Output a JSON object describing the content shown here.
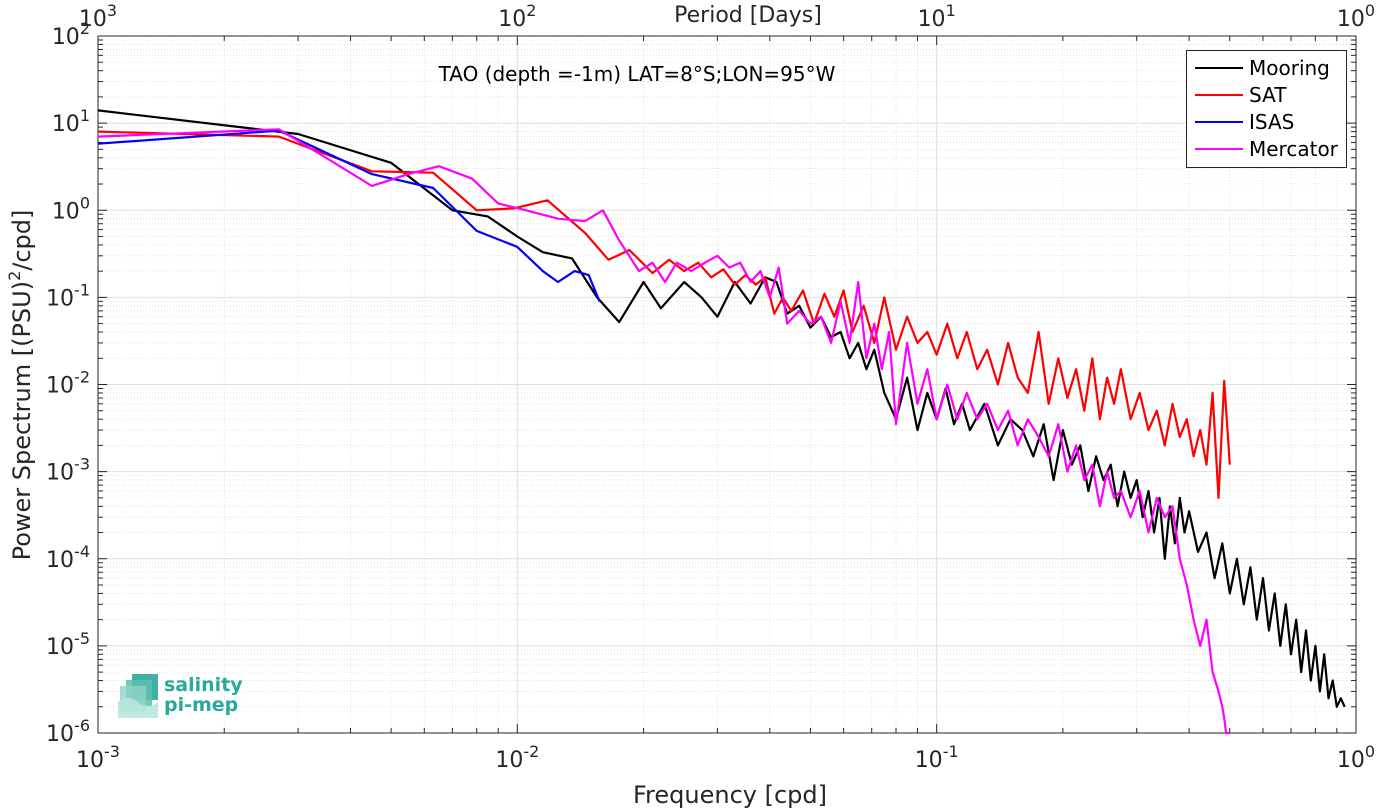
{
  "chart_data": {
    "type": "line",
    "title": "TAO (depth =-1m) LAT=8°S;LON=95°W",
    "xlabel": "Frequency [cpd]",
    "ylabel_parts": [
      "Power Spectrum [(PSU)",
      "2",
      "/cpd]"
    ],
    "top_label": "Period [Days]",
    "x_scale": "log",
    "y_scale": "log",
    "xlim": [
      0.001,
      1
    ],
    "ylim": [
      1e-06,
      100
    ],
    "grid": true,
    "minor_grid": true,
    "legend_location": "top-right",
    "x_ticks": [
      {
        "base": "10",
        "exp": "-3"
      },
      {
        "base": "10",
        "exp": "-2"
      },
      {
        "base": "10",
        "exp": "-1"
      },
      {
        "base": "10",
        "exp": "0"
      }
    ],
    "y_ticks": [
      {
        "base": "10",
        "exp": "-6"
      },
      {
        "base": "10",
        "exp": "-5"
      },
      {
        "base": "10",
        "exp": "-4"
      },
      {
        "base": "10",
        "exp": "-3"
      },
      {
        "base": "10",
        "exp": "-2"
      },
      {
        "base": "10",
        "exp": "-1"
      },
      {
        "base": "10",
        "exp": "0"
      },
      {
        "base": "10",
        "exp": "1"
      },
      {
        "base": "10",
        "exp": "2"
      }
    ],
    "top_ticks": [
      {
        "base": "10",
        "exp": "3"
      },
      {
        "base": "10",
        "exp": "2"
      },
      {
        "base": "10",
        "exp": "1"
      },
      {
        "base": "10",
        "exp": "0"
      }
    ],
    "series": [
      {
        "name": "Mooring",
        "color": "#000000",
        "x": [
          0.001,
          0.003,
          0.005,
          0.007,
          0.0085,
          0.01,
          0.0115,
          0.0135,
          0.0155,
          0.0175,
          0.02,
          0.022,
          0.025,
          0.0275,
          0.03,
          0.033,
          0.036,
          0.039,
          0.0415,
          0.044,
          0.047,
          0.05,
          0.053,
          0.056,
          0.059,
          0.062,
          0.065,
          0.068,
          0.071,
          0.075,
          0.08,
          0.085,
          0.09,
          0.095,
          0.1,
          0.105,
          0.11,
          0.115,
          0.12,
          0.13,
          0.14,
          0.15,
          0.16,
          0.17,
          0.18,
          0.19,
          0.2,
          0.21,
          0.22,
          0.23,
          0.24,
          0.25,
          0.26,
          0.27,
          0.28,
          0.29,
          0.3,
          0.31,
          0.32,
          0.33,
          0.34,
          0.35,
          0.36,
          0.37,
          0.38,
          0.39,
          0.4,
          0.42,
          0.44,
          0.46,
          0.48,
          0.5,
          0.52,
          0.54,
          0.56,
          0.58,
          0.6,
          0.62,
          0.64,
          0.66,
          0.68,
          0.7,
          0.72,
          0.74,
          0.76,
          0.78,
          0.8,
          0.82,
          0.84,
          0.86,
          0.88,
          0.9,
          0.92,
          0.94
        ],
        "y": [
          14,
          7.5,
          3.5,
          1.0,
          0.85,
          0.5,
          0.33,
          0.28,
          0.1,
          0.052,
          0.15,
          0.075,
          0.15,
          0.1,
          0.06,
          0.15,
          0.085,
          0.17,
          0.15,
          0.065,
          0.08,
          0.045,
          0.06,
          0.035,
          0.04,
          0.02,
          0.03,
          0.015,
          0.025,
          0.008,
          0.004,
          0.012,
          0.003,
          0.008,
          0.004,
          0.009,
          0.0035,
          0.006,
          0.003,
          0.006,
          0.002,
          0.004,
          0.003,
          0.0015,
          0.0035,
          0.0008,
          0.003,
          0.0012,
          0.002,
          0.0006,
          0.0015,
          0.0008,
          0.0012,
          0.0004,
          0.001,
          0.0005,
          0.0008,
          0.0003,
          0.0006,
          0.0002,
          0.0005,
          0.0001,
          0.0004,
          0.00015,
          0.0005,
          0.0002,
          0.00035,
          0.00012,
          0.0002,
          6e-05,
          0.00015,
          4e-05,
          0.0001,
          3e-05,
          8e-05,
          2e-05,
          6e-05,
          1.5e-05,
          4e-05,
          1e-05,
          3e-05,
          8e-06,
          2e-05,
          5e-06,
          1.5e-05,
          4e-06,
          1e-05,
          3e-06,
          8e-06,
          2.5e-06,
          4e-06,
          2e-06,
          2.5e-06,
          2e-06
        ]
      },
      {
        "name": "SAT",
        "color": "#ff0000",
        "x": [
          0.001,
          0.0027,
          0.0045,
          0.0063,
          0.008,
          0.0098,
          0.0118,
          0.0145,
          0.0165,
          0.0185,
          0.021,
          0.023,
          0.025,
          0.027,
          0.029,
          0.031,
          0.033,
          0.035,
          0.037,
          0.039,
          0.041,
          0.043,
          0.045,
          0.048,
          0.051,
          0.054,
          0.057,
          0.06,
          0.063,
          0.067,
          0.071,
          0.075,
          0.08,
          0.085,
          0.09,
          0.095,
          0.1,
          0.106,
          0.112,
          0.118,
          0.125,
          0.132,
          0.14,
          0.148,
          0.156,
          0.165,
          0.175,
          0.185,
          0.195,
          0.205,
          0.215,
          0.225,
          0.235,
          0.245,
          0.255,
          0.265,
          0.275,
          0.29,
          0.305,
          0.32,
          0.335,
          0.35,
          0.365,
          0.38,
          0.395,
          0.41,
          0.425,
          0.44,
          0.455,
          0.47,
          0.485,
          0.5
        ],
        "y": [
          8,
          7,
          2.8,
          2.7,
          1.0,
          1.05,
          1.3,
          0.55,
          0.27,
          0.35,
          0.19,
          0.27,
          0.2,
          0.25,
          0.17,
          0.21,
          0.14,
          0.18,
          0.14,
          0.17,
          0.065,
          0.1,
          0.07,
          0.12,
          0.05,
          0.11,
          0.06,
          0.12,
          0.04,
          0.08,
          0.03,
          0.1,
          0.025,
          0.06,
          0.03,
          0.04,
          0.022,
          0.05,
          0.02,
          0.04,
          0.015,
          0.025,
          0.01,
          0.03,
          0.012,
          0.008,
          0.04,
          0.006,
          0.02,
          0.007,
          0.015,
          0.005,
          0.02,
          0.004,
          0.012,
          0.006,
          0.015,
          0.004,
          0.008,
          0.003,
          0.005,
          0.002,
          0.006,
          0.0025,
          0.004,
          0.0015,
          0.003,
          0.0012,
          0.008,
          0.0005,
          0.011,
          0.0012
        ]
      },
      {
        "name": "ISAS",
        "color": "#0000ff",
        "x": [
          0.001,
          0.0027,
          0.0045,
          0.0063,
          0.008,
          0.01,
          0.0115,
          0.0125,
          0.0137,
          0.0148,
          0.0157
        ],
        "y": [
          5.8,
          8.2,
          2.6,
          1.8,
          0.58,
          0.38,
          0.2,
          0.15,
          0.2,
          0.18,
          0.09
        ]
      },
      {
        "name": "Mercator",
        "color": "#ff00ff",
        "x": [
          0.001,
          0.0027,
          0.0035,
          0.0045,
          0.0055,
          0.0065,
          0.0078,
          0.009,
          0.0105,
          0.0125,
          0.0145,
          0.016,
          0.0175,
          0.0195,
          0.021,
          0.0225,
          0.024,
          0.026,
          0.028,
          0.03,
          0.032,
          0.034,
          0.036,
          0.038,
          0.04,
          0.042,
          0.044,
          0.047,
          0.05,
          0.053,
          0.056,
          0.059,
          0.062,
          0.065,
          0.068,
          0.071,
          0.074,
          0.077,
          0.08,
          0.085,
          0.09,
          0.095,
          0.1,
          0.106,
          0.112,
          0.118,
          0.125,
          0.132,
          0.14,
          0.148,
          0.156,
          0.165,
          0.175,
          0.185,
          0.195,
          0.205,
          0.215,
          0.225,
          0.235,
          0.245,
          0.255,
          0.265,
          0.275,
          0.29,
          0.305,
          0.32,
          0.335,
          0.35,
          0.365,
          0.38,
          0.395,
          0.41,
          0.425,
          0.44,
          0.455,
          0.47,
          0.48,
          0.485,
          0.49,
          0.5
        ],
        "y": [
          7,
          8.5,
          4,
          1.9,
          2.6,
          3.2,
          2.3,
          1.2,
          1.0,
          0.8,
          0.75,
          1.0,
          0.45,
          0.2,
          0.25,
          0.15,
          0.25,
          0.2,
          0.25,
          0.3,
          0.22,
          0.25,
          0.15,
          0.2,
          0.1,
          0.22,
          0.05,
          0.07,
          0.05,
          0.06,
          0.03,
          0.09,
          0.03,
          0.15,
          0.02,
          0.05,
          0.015,
          0.04,
          0.0035,
          0.03,
          0.006,
          0.015,
          0.004,
          0.01,
          0.004,
          0.008,
          0.004,
          0.006,
          0.003,
          0.005,
          0.002,
          0.004,
          0.0025,
          0.0015,
          0.0035,
          0.001,
          0.002,
          0.0008,
          0.0012,
          0.0004,
          0.001,
          0.0005,
          0.0006,
          0.0003,
          0.0006,
          0.0002,
          0.0005,
          0.0003,
          0.0004,
          0.0001,
          5e-05,
          2e-05,
          1e-05,
          2e-05,
          5e-06,
          3e-06,
          2e-06,
          1.5e-06,
          1e-06,
          1e-06
        ]
      }
    ]
  },
  "logo": {
    "line1": "salinity",
    "line2": "pi-mep"
  }
}
